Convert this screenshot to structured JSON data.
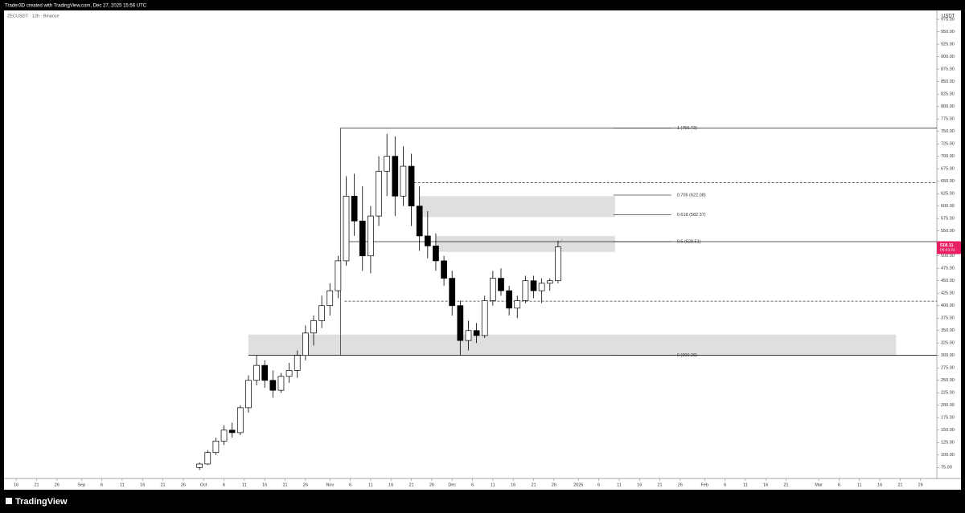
{
  "header": {
    "credit": "Trader3D created with TradingView.com, Dec 27, 2025 15:56 UTC"
  },
  "footer": {
    "brand": "TradingView"
  },
  "chart_data": {
    "type": "candlestick",
    "symbol": "ZECUSDT · 12h · Binance",
    "currency": "USDT",
    "up_color": "#ffffff",
    "down_color": "#000000",
    "x": [
      45,
      47,
      49,
      51,
      53,
      55,
      57,
      59,
      61,
      63,
      65,
      67,
      69,
      71,
      73,
      75,
      77,
      79,
      81,
      83,
      85,
      87,
      89,
      91,
      93,
      95,
      97,
      99,
      101,
      103,
      105,
      107,
      109,
      111,
      113,
      115,
      117,
      119,
      121,
      123,
      125,
      127,
      129,
      131,
      133
    ],
    "open": [
      75,
      82,
      105,
      128,
      150,
      145,
      195,
      250,
      280,
      250,
      230,
      258,
      270,
      300,
      345,
      370,
      400,
      430,
      490,
      620,
      570,
      500,
      580,
      670,
      700,
      620,
      680,
      600,
      540,
      520,
      490,
      455,
      400,
      330,
      350,
      340,
      410,
      455,
      430,
      395,
      410,
      450,
      430,
      445,
      450
    ],
    "high": [
      85,
      110,
      135,
      160,
      165,
      200,
      260,
      300,
      290,
      270,
      265,
      285,
      310,
      360,
      380,
      420,
      445,
      500,
      660,
      665,
      640,
      600,
      700,
      745,
      740,
      720,
      705,
      640,
      590,
      545,
      500,
      470,
      410,
      370,
      365,
      420,
      470,
      475,
      440,
      420,
      460,
      460,
      455,
      455,
      530
    ],
    "low": [
      70,
      80,
      100,
      120,
      135,
      140,
      185,
      240,
      235,
      215,
      225,
      245,
      255,
      290,
      320,
      355,
      380,
      415,
      480,
      540,
      470,
      465,
      560,
      620,
      580,
      600,
      560,
      510,
      495,
      470,
      440,
      380,
      300,
      310,
      325,
      335,
      400,
      420,
      380,
      375,
      405,
      415,
      405,
      430,
      445
    ],
    "close": [
      82,
      105,
      128,
      150,
      145,
      195,
      250,
      280,
      250,
      230,
      258,
      270,
      300,
      345,
      370,
      400,
      430,
      490,
      620,
      570,
      500,
      580,
      670,
      700,
      620,
      680,
      600,
      540,
      520,
      490,
      455,
      400,
      330,
      350,
      340,
      410,
      455,
      430,
      395,
      410,
      450,
      430,
      445,
      450,
      518.11
    ],
    "last_price": {
      "value": 518.11,
      "label": "518.11"
    },
    "countdown": "06:03:22",
    "fib_levels": [
      {
        "price": 756.73,
        "label": "1 (756.73)"
      },
      {
        "price": 622.08,
        "label": "0.705 (622.08)"
      },
      {
        "price": 582.37,
        "label": "0.618 (582.37)"
      },
      {
        "price": 528.51,
        "label": "0.5 (528.51)"
      },
      {
        "price": 300.28,
        "label": "0 (300.28)"
      }
    ],
    "dashed_levels": [
      647,
      409
    ],
    "zones": [
      {
        "x0": 99,
        "x1": 147,
        "low": 578,
        "high": 620
      },
      {
        "x0": 103,
        "x1": 147,
        "low": 508,
        "high": 540
      },
      {
        "x0": 57,
        "x1": 216,
        "low": 300,
        "high": 342
      }
    ],
    "xlim": [
      -3,
      226
    ],
    "xticks": [
      {
        "value": 0,
        "label": "16"
      },
      {
        "value": 5,
        "label": "21"
      },
      {
        "value": 10,
        "label": "26"
      },
      {
        "value": 16,
        "label": "Sep"
      },
      {
        "value": 21,
        "label": "6"
      },
      {
        "value": 26,
        "label": "11"
      },
      {
        "value": 31,
        "label": "16"
      },
      {
        "value": 36,
        "label": "21"
      },
      {
        "value": 41,
        "label": "26"
      },
      {
        "value": 46,
        "label": "Oct"
      },
      {
        "value": 51,
        "label": "6"
      },
      {
        "value": 56,
        "label": "11"
      },
      {
        "value": 61,
        "label": "16"
      },
      {
        "value": 66,
        "label": "21"
      },
      {
        "value": 71,
        "label": "26"
      },
      {
        "value": 77,
        "label": "Nov"
      },
      {
        "value": 82,
        "label": "6"
      },
      {
        "value": 87,
        "label": "11"
      },
      {
        "value": 92,
        "label": "16"
      },
      {
        "value": 97,
        "label": "21"
      },
      {
        "value": 102,
        "label": "26"
      },
      {
        "value": 107,
        "label": "Dec"
      },
      {
        "value": 112,
        "label": "6"
      },
      {
        "value": 117,
        "label": "11"
      },
      {
        "value": 122,
        "label": "16"
      },
      {
        "value": 127,
        "label": "21"
      },
      {
        "value": 132,
        "label": "26"
      },
      {
        "value": 138,
        "label": "2026"
      },
      {
        "value": 143,
        "label": "6"
      },
      {
        "value": 148,
        "label": "11"
      },
      {
        "value": 153,
        "label": "16"
      },
      {
        "value": 158,
        "label": "21"
      },
      {
        "value": 163,
        "label": "26"
      },
      {
        "value": 169,
        "label": "Feb"
      },
      {
        "value": 174,
        "label": "6"
      },
      {
        "value": 179,
        "label": "11"
      },
      {
        "value": 184,
        "label": "16"
      },
      {
        "value": 189,
        "label": "21"
      },
      {
        "value": 197,
        "label": "Mar"
      },
      {
        "value": 202,
        "label": "6"
      },
      {
        "value": 207,
        "label": "11"
      },
      {
        "value": 212,
        "label": "16"
      },
      {
        "value": 217,
        "label": "21"
      },
      {
        "value": 222,
        "label": "26"
      }
    ],
    "ylim": [
      52.9,
      992.9
    ],
    "yticks": [
      {
        "value": 75,
        "label": "75.00"
      },
      {
        "value": 100,
        "label": "100.00"
      },
      {
        "value": 125,
        "label": "125.00"
      },
      {
        "value": 150,
        "label": "150.00"
      },
      {
        "value": 175,
        "label": "175.00"
      },
      {
        "value": 200,
        "label": "200.00"
      },
      {
        "value": 225,
        "label": "225.00"
      },
      {
        "value": 250,
        "label": "250.00"
      },
      {
        "value": 275,
        "label": "275.00"
      },
      {
        "value": 300,
        "label": "300.00"
      },
      {
        "value": 325,
        "label": "325.00"
      },
      {
        "value": 350,
        "label": "350.00"
      },
      {
        "value": 375,
        "label": "375.00"
      },
      {
        "value": 400,
        "label": "400.00"
      },
      {
        "value": 425,
        "label": "425.00"
      },
      {
        "value": 450,
        "label": "450.00"
      },
      {
        "value": 475,
        "label": "475.00"
      },
      {
        "value": 500,
        "label": "500.00"
      },
      {
        "value": 525,
        "label": "525.00"
      },
      {
        "value": 550,
        "label": "550.00"
      },
      {
        "value": 575,
        "label": "575.00"
      },
      {
        "value": 600,
        "label": "600.00"
      },
      {
        "value": 625,
        "label": "625.00"
      },
      {
        "value": 650,
        "label": "650.00"
      },
      {
        "value": 675,
        "label": "675.00"
      },
      {
        "value": 700,
        "label": "700.00"
      },
      {
        "value": 725,
        "label": "725.00"
      },
      {
        "value": 750,
        "label": "750.00"
      },
      {
        "value": 775,
        "label": "775.00"
      },
      {
        "value": 800,
        "label": "800.00"
      },
      {
        "value": 825,
        "label": "825.00"
      },
      {
        "value": 850,
        "label": "850.00"
      },
      {
        "value": 875,
        "label": "875.00"
      },
      {
        "value": 900,
        "label": "900.00"
      },
      {
        "value": 925,
        "label": "925.00"
      },
      {
        "value": 950,
        "label": "950.00"
      },
      {
        "value": 975,
        "label": "975.00"
      }
    ]
  }
}
